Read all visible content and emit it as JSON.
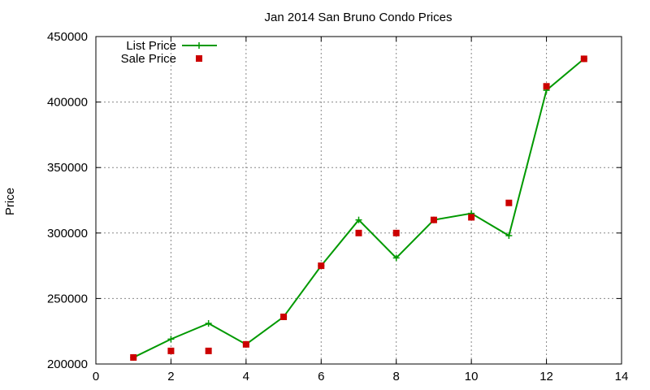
{
  "chart_data": {
    "type": "line",
    "title": "Jan 2014 San Bruno Condo Prices",
    "xlabel": "",
    "ylabel": "Price",
    "xlim": [
      0,
      14
    ],
    "ylim": [
      200000,
      450000
    ],
    "xticks": [
      0,
      2,
      4,
      6,
      8,
      10,
      12,
      14
    ],
    "yticks": [
      200000,
      250000,
      300000,
      350000,
      400000,
      450000
    ],
    "grid": true,
    "legend_position": "top-left",
    "series": [
      {
        "name": "List Price",
        "style": "line-with-plus-markers",
        "color": "#009900",
        "x": [
          1,
          2,
          3,
          4,
          5,
          6,
          7,
          8,
          9,
          10,
          11,
          12,
          13
        ],
        "y": [
          205000,
          219000,
          231000,
          215000,
          236000,
          275000,
          310000,
          281000,
          310000,
          315000,
          298000,
          409000,
          433000
        ]
      },
      {
        "name": "Sale Price",
        "style": "square-markers",
        "color": "#cc0000",
        "x": [
          1,
          2,
          3,
          4,
          5,
          6,
          7,
          8,
          9,
          10,
          11,
          12,
          13
        ],
        "y": [
          205000,
          210000,
          210000,
          215000,
          236000,
          275000,
          300000,
          300000,
          310000,
          312000,
          323000,
          412000,
          433000
        ]
      }
    ]
  }
}
